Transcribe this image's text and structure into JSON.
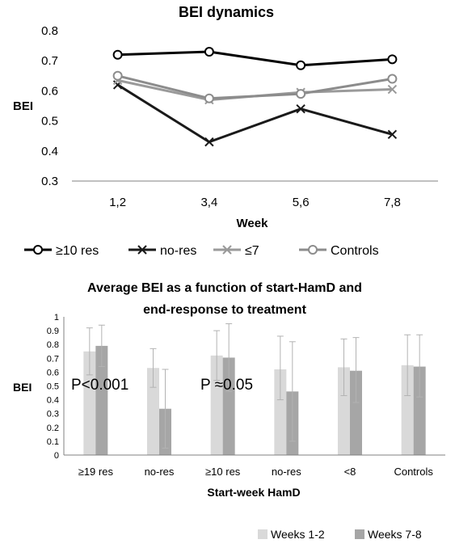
{
  "chart_data": [
    {
      "type": "line",
      "title": "BEI dynamics",
      "xlabel": "Week",
      "ylabel": "BEI",
      "categories": [
        "1,2",
        "3,4",
        "5,6",
        "7,8"
      ],
      "ylim": [
        0.3,
        0.8
      ],
      "yticks": [
        "0.3",
        "0.4",
        "0.5",
        "0.6",
        "0.7",
        "0.8"
      ],
      "grid": false,
      "legend_position": "bottom",
      "series": [
        {
          "name": "≥10 res",
          "values": [
            0.72,
            0.73,
            0.685,
            0.705
          ],
          "color": "#000000",
          "marker": "circle"
        },
        {
          "name": "no-res",
          "values": [
            0.62,
            0.43,
            0.54,
            0.455
          ],
          "color": "#1a1a1a",
          "marker": "x"
        },
        {
          "name": "≤7",
          "values": [
            0.635,
            0.57,
            0.595,
            0.605
          ],
          "color": "#9a9a9a",
          "marker": "x"
        },
        {
          "name": "Controls",
          "values": [
            0.65,
            0.575,
            0.59,
            0.64
          ],
          "color": "#8c8c8c",
          "marker": "circle"
        }
      ]
    },
    {
      "type": "bar",
      "title_lines": [
        "Average BEI as a function of start-HamD and",
        "end-response to treatment"
      ],
      "xlabel": "Start-week HamD",
      "ylabel": "BEI",
      "categories": [
        "≥19 res",
        "no-res",
        "≥10 res",
        "no-res",
        "<8",
        "Controls"
      ],
      "ylim": [
        0,
        1
      ],
      "yticks": [
        "0",
        "0.1",
        "0.2",
        "0.3",
        "0.4",
        "0.5",
        "0.6",
        "0.7",
        "0.8",
        "0.9",
        "1"
      ],
      "grid": false,
      "legend_position": "bottom-right",
      "series": [
        {
          "name": "Weeks 1-2",
          "values": [
            0.75,
            0.63,
            0.72,
            0.62,
            0.635,
            0.65
          ],
          "error_upper": [
            0.92,
            0.77,
            0.9,
            0.86,
            0.84,
            0.87
          ],
          "error_lower": [
            0.58,
            0.49,
            0.54,
            0.4,
            0.43,
            0.43
          ],
          "color": "#d9d9d9"
        },
        {
          "name": "Weeks 7-8",
          "values": [
            0.79,
            0.335,
            0.705,
            0.46,
            0.61,
            0.64
          ],
          "error_upper": [
            0.94,
            0.62,
            0.95,
            0.82,
            0.85,
            0.87
          ],
          "error_lower": [
            0.64,
            0.05,
            0.46,
            0.1,
            0.38,
            0.42
          ],
          "color": "#a6a6a6"
        }
      ],
      "annotations": [
        "P<0.001",
        "P ≈0.05"
      ]
    }
  ]
}
